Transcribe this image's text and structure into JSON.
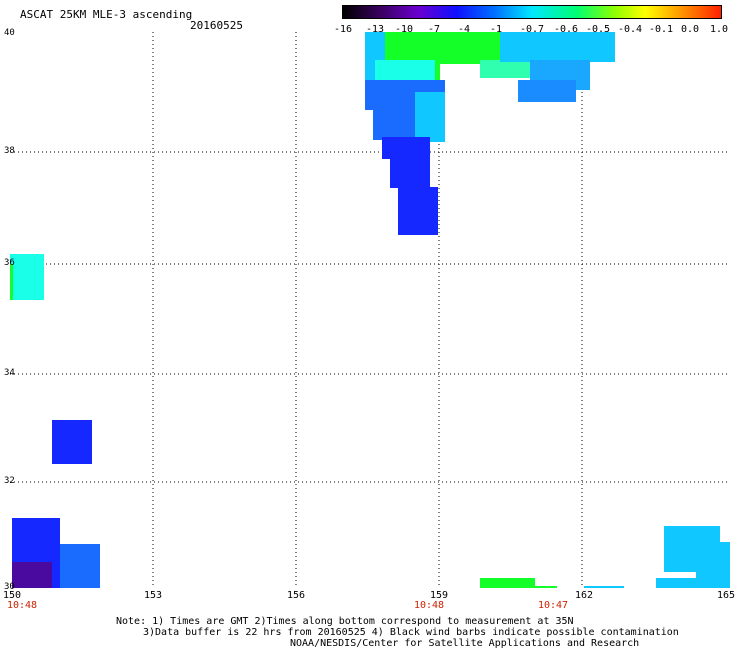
{
  "header": {
    "title": "ASCAT 25KM MLE-3 ascending",
    "date": "20160525"
  },
  "colorbar": {
    "labels": [
      "-16",
      "-13",
      "-10",
      "-7",
      "-4",
      "-1",
      "-0.7",
      "-0.6",
      "-0.5",
      "-0.4",
      "-0.1",
      "0.0",
      "1.0"
    ]
  },
  "axes": {
    "y_labels": [
      "40",
      "38",
      "36",
      "34",
      "32",
      "30"
    ],
    "x_labels": [
      "150",
      "153",
      "156",
      "159",
      "162",
      "165"
    ],
    "time_labels": [
      "10:48",
      "10:48",
      "10:47"
    ]
  },
  "notes": {
    "line1": "Note: 1) Times are GMT 2)Times along bottom correspond to measurement at 35N",
    "line2": "3)Data buffer is 22 hrs from 20160525 4) Black wind barbs indicate possible contamination",
    "line3": "NOAA/NESDIS/Center for Satellite Applications and Research"
  },
  "colors": {
    "deep_purple": "#4a0aa0",
    "blue": "#1428ff",
    "mid_blue": "#1a6cff",
    "light_blue": "#10c8ff",
    "cyan": "#19ffe8",
    "green": "#14ff28",
    "grid": "#000000"
  }
}
